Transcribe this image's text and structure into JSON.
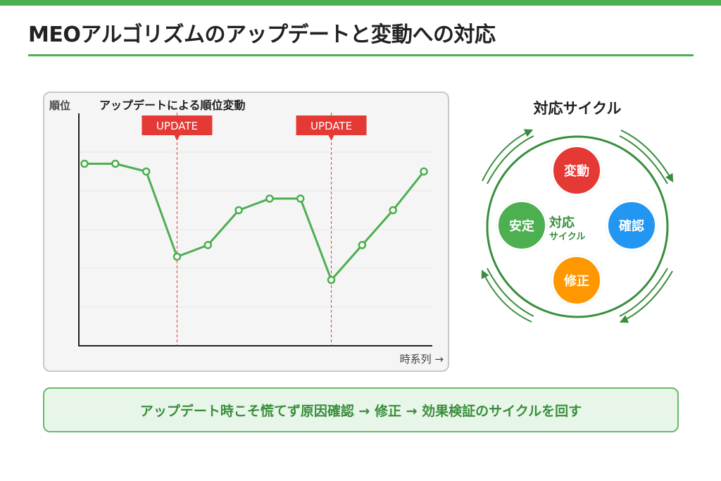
{
  "page": {
    "title": "MEOアルゴリズムのアップデートと変動への対応"
  },
  "colors": {
    "accent": "#4caf50",
    "update_marker": "#e53935",
    "line": "#4caf50",
    "node_change": "#e53935",
    "node_confirm": "#2196f3",
    "node_fix": "#ff9800",
    "node_stable": "#4caf50"
  },
  "chart_data": {
    "type": "line",
    "title": "アップデートによる順位変動",
    "ylabel": "順位",
    "xlabel": "時系列 →",
    "x": [
      1,
      2,
      3,
      4,
      5,
      6,
      7,
      8,
      9,
      10,
      11,
      12
    ],
    "series": [
      {
        "values": [
          3.7,
          3.7,
          3.5,
          1.3,
          1.6,
          2.5,
          2.8,
          2.8,
          0.7,
          1.6,
          2.5,
          3.5
        ]
      }
    ],
    "ylim": [
      -1,
      5
    ],
    "grid": true,
    "annotations": [
      {
        "label": "UPDATE",
        "x": 4
      },
      {
        "label": "UPDATE",
        "x": 9
      }
    ]
  },
  "cycle": {
    "title": "対応サイクル",
    "center": {
      "main": "対応",
      "sub": "サイクル"
    },
    "nodes": {
      "change": "変動",
      "confirm": "確認",
      "fix": "修正",
      "stable": "安定"
    }
  },
  "banner": {
    "text": "アップデート時こそ慌てず原因確認 → 修正 → 効果検証のサイクルを回す"
  }
}
